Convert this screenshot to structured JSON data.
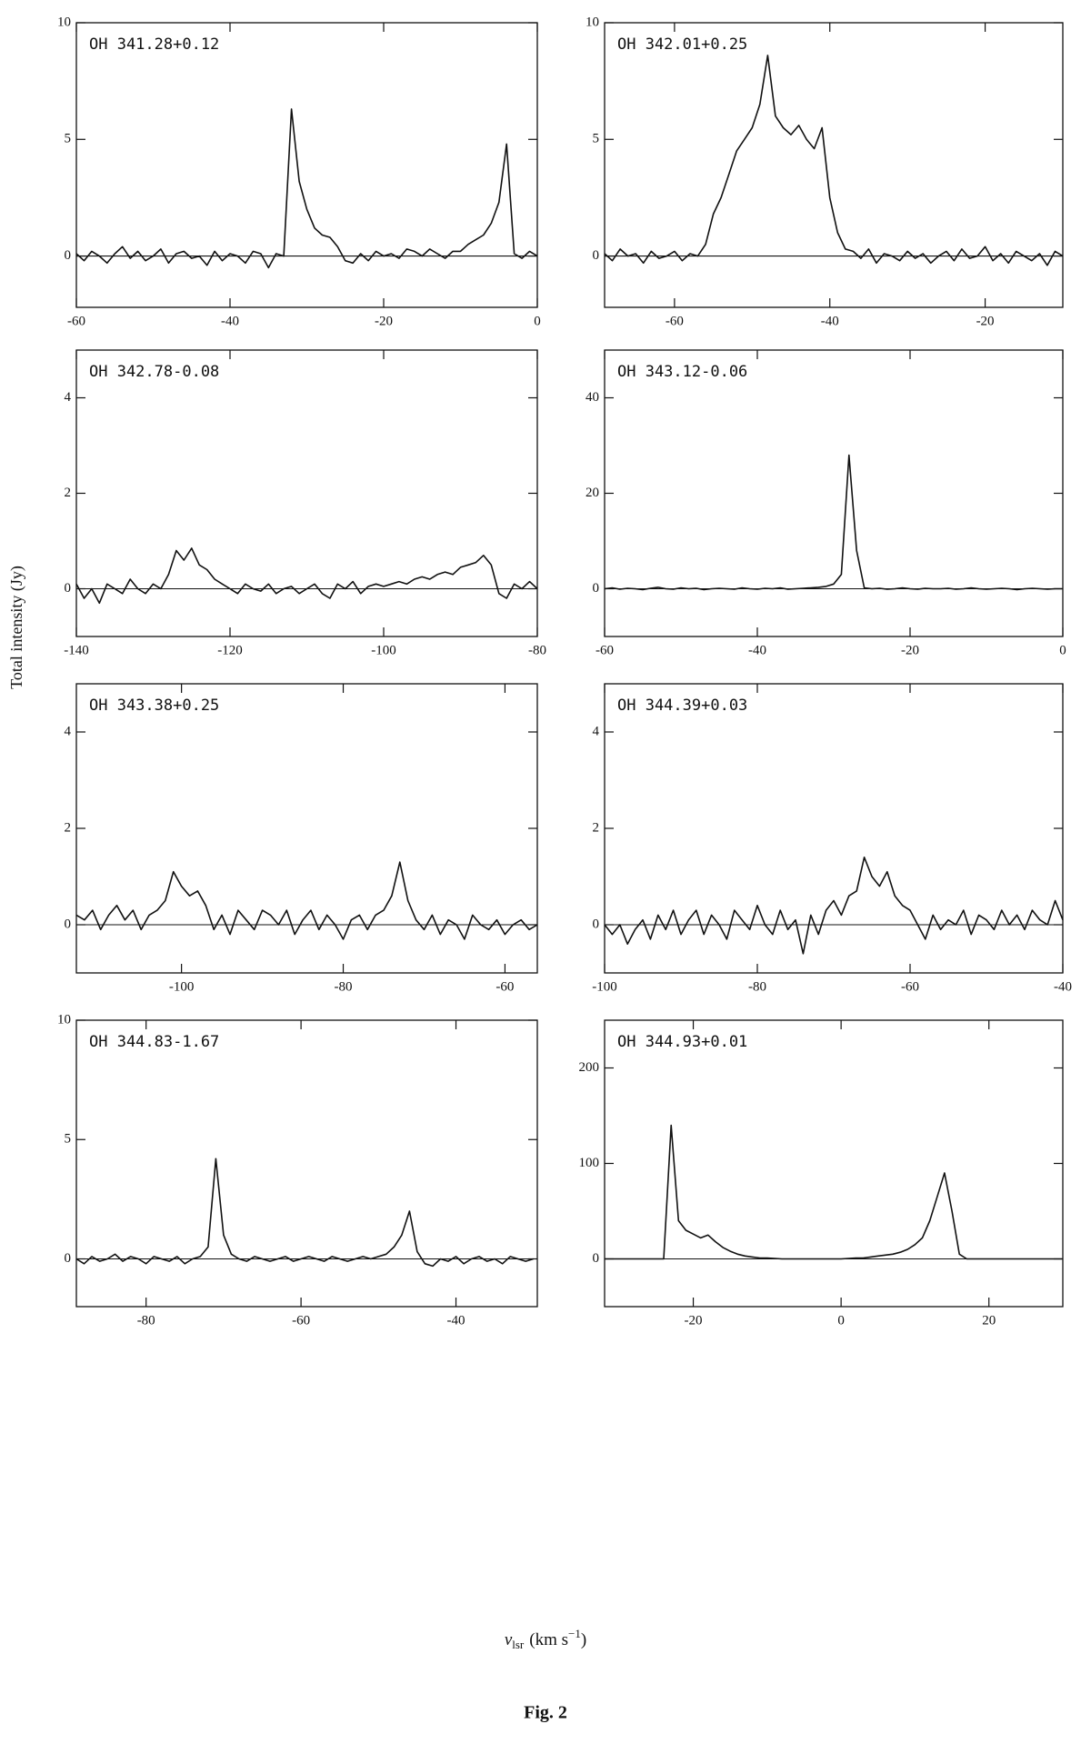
{
  "figure": {
    "ylabel": "Total intensity (Jy)",
    "xlabel": {
      "symbol": "v",
      "subscript": "lsr",
      "unit": "(km s",
      "exponent": "−1",
      "close": ")"
    },
    "caption": "Fig. 2"
  },
  "chart_data": [
    {
      "type": "line",
      "title": "OH 341.28+0.12",
      "xlim": [
        -60,
        0
      ],
      "ylim": [
        -2.2,
        10
      ],
      "xticks": [
        -60,
        -40,
        -20,
        0
      ],
      "yticks": [
        0,
        5,
        10
      ],
      "color": "#111111",
      "x": [
        -60,
        -59,
        -58,
        -57,
        -56,
        -55,
        -54,
        -53,
        -52,
        -51,
        -50,
        -49,
        -48,
        -47,
        -46,
        -45,
        -44,
        -43,
        -42,
        -41,
        -40,
        -39,
        -38,
        -37,
        -36,
        -35,
        -34,
        -33,
        -32,
        -31,
        -30,
        -29,
        -28,
        -27,
        -26,
        -25,
        -24,
        -23,
        -22,
        -21,
        -20,
        -19,
        -18,
        -17,
        -16,
        -15,
        -14,
        -13,
        -12,
        -11,
        -10,
        -9,
        -8,
        -7,
        -6,
        -5,
        -4,
        -3,
        -2,
        -1,
        0
      ],
      "values": [
        0.1,
        -0.2,
        0.2,
        0,
        -0.3,
        0.1,
        0.4,
        -0.1,
        0.2,
        -0.2,
        0,
        0.3,
        -0.3,
        0.1,
        0.2,
        -0.1,
        0,
        -0.4,
        0.2,
        -0.2,
        0.1,
        0,
        -0.3,
        0.2,
        0.1,
        -0.5,
        0.1,
        0,
        6.3,
        3.2,
        2.0,
        1.2,
        0.9,
        0.8,
        0.4,
        -0.2,
        -0.3,
        0.1,
        -0.2,
        0.2,
        0,
        0.1,
        -0.1,
        0.3,
        0.2,
        0,
        0.3,
        0.1,
        -0.1,
        0.2,
        0.2,
        0.5,
        0.7,
        0.9,
        1.4,
        2.3,
        4.8,
        0.1,
        -0.1,
        0.2,
        0
      ]
    },
    {
      "type": "line",
      "title": "OH 342.01+0.25",
      "xlim": [
        -69,
        -10
      ],
      "ylim": [
        -2.2,
        10
      ],
      "xticks": [
        -60,
        -40,
        -20
      ],
      "yticks": [
        0,
        5,
        10
      ],
      "color": "#111111",
      "x": [
        -69,
        -68,
        -67,
        -66,
        -65,
        -64,
        -63,
        -62,
        -61,
        -60,
        -59,
        -58,
        -57,
        -56,
        -55,
        -54,
        -53,
        -52,
        -51,
        -50,
        -49,
        -48,
        -47,
        -46,
        -45,
        -44,
        -43,
        -42,
        -41,
        -40,
        -39,
        -38,
        -37,
        -36,
        -35,
        -34,
        -33,
        -32,
        -31,
        -30,
        -29,
        -28,
        -27,
        -26,
        -25,
        -24,
        -23,
        -22,
        -21,
        -20,
        -19,
        -18,
        -17,
        -16,
        -15,
        -14,
        -13,
        -12,
        -11,
        -10
      ],
      "values": [
        0.1,
        -0.2,
        0.3,
        0,
        0.1,
        -0.3,
        0.2,
        -0.1,
        0,
        0.2,
        -0.2,
        0.1,
        0,
        0.5,
        1.8,
        2.5,
        3.5,
        4.5,
        5.0,
        5.5,
        6.5,
        8.6,
        6.0,
        5.5,
        5.2,
        5.6,
        5.0,
        4.6,
        5.5,
        2.5,
        1.0,
        0.3,
        0.2,
        -0.1,
        0.3,
        -0.3,
        0.1,
        0,
        -0.2,
        0.2,
        -0.1,
        0.1,
        -0.3,
        0,
        0.2,
        -0.2,
        0.3,
        -0.1,
        0,
        0.4,
        -0.2,
        0.1,
        -0.3,
        0.2,
        0,
        -0.2,
        0.1,
        -0.4,
        0.2,
        0
      ]
    },
    {
      "type": "line",
      "title": "OH 342.78-0.08",
      "xlim": [
        -140,
        -80
      ],
      "ylim": [
        -1,
        5
      ],
      "xticks": [
        -140,
        -120,
        -100,
        -80
      ],
      "yticks": [
        0,
        2,
        4
      ],
      "color": "#111111",
      "x": [
        -140,
        -139,
        -138,
        -137,
        -136,
        -135,
        -134,
        -133,
        -132,
        -131,
        -130,
        -129,
        -128,
        -127,
        -126,
        -125,
        -124,
        -123,
        -122,
        -121,
        -120,
        -119,
        -118,
        -117,
        -116,
        -115,
        -114,
        -113,
        -112,
        -111,
        -110,
        -109,
        -108,
        -107,
        -106,
        -105,
        -104,
        -103,
        -102,
        -101,
        -100,
        -99,
        -98,
        -97,
        -96,
        -95,
        -94,
        -93,
        -92,
        -91,
        -90,
        -89,
        -88,
        -87,
        -86,
        -85,
        -84,
        -83,
        -82,
        -81,
        -80
      ],
      "values": [
        0.1,
        -0.2,
        0,
        -0.3,
        0.1,
        0,
        -0.1,
        0.2,
        0,
        -0.1,
        0.1,
        0,
        0.3,
        0.8,
        0.6,
        0.85,
        0.5,
        0.4,
        0.2,
        0.1,
        0,
        -0.1,
        0.1,
        0,
        -0.05,
        0.1,
        -0.1,
        0,
        0.05,
        -0.1,
        0,
        0.1,
        -0.1,
        -0.2,
        0.1,
        0,
        0.15,
        -0.1,
        0.05,
        0.1,
        0.05,
        0.1,
        0.15,
        0.1,
        0.2,
        0.25,
        0.2,
        0.3,
        0.35,
        0.3,
        0.45,
        0.5,
        0.55,
        0.7,
        0.5,
        -0.1,
        -0.2,
        0.1,
        0,
        0.15,
        0
      ]
    },
    {
      "type": "line",
      "title": "OH 343.12-0.06",
      "xlim": [
        -60,
        0
      ],
      "ylim": [
        -10,
        50
      ],
      "xticks": [
        -60,
        -40,
        -20,
        0
      ],
      "yticks": [
        0,
        20,
        40
      ],
      "color": "#111111",
      "x": [
        -60,
        -59,
        -58,
        -57,
        -56,
        -55,
        -54,
        -53,
        -52,
        -51,
        -50,
        -49,
        -48,
        -47,
        -46,
        -45,
        -44,
        -43,
        -42,
        -41,
        -40,
        -39,
        -38,
        -37,
        -36,
        -35,
        -34,
        -33,
        -32,
        -31,
        -30,
        -29,
        -28,
        -27,
        -26,
        -25,
        -24,
        -23,
        -22,
        -21,
        -20,
        -19,
        -18,
        -17,
        -16,
        -15,
        -14,
        -13,
        -12,
        -11,
        -10,
        -9,
        -8,
        -7,
        -6,
        -5,
        -4,
        -3,
        -2,
        -1,
        0
      ],
      "values": [
        0,
        0.2,
        -0.1,
        0.1,
        0,
        -0.2,
        0.1,
        0.3,
        0,
        -0.1,
        0.2,
        0,
        0.1,
        -0.2,
        0,
        0.1,
        0,
        -0.1,
        0.2,
        0,
        -0.1,
        0.1,
        0,
        0.2,
        -0.1,
        0,
        0.1,
        0.2,
        0.3,
        0.5,
        1.0,
        3.0,
        28,
        8,
        0.2,
        0,
        0.1,
        -0.1,
        0,
        0.2,
        0,
        -0.1,
        0.1,
        0,
        0,
        0.1,
        -0.1,
        0,
        0.2,
        0,
        -0.1,
        0,
        0.1,
        0,
        -0.2,
        0,
        0.1,
        0,
        -0.1,
        0,
        0
      ]
    },
    {
      "type": "line",
      "title": "OH 343.38+0.25",
      "xlim": [
        -113,
        -56
      ],
      "ylim": [
        -1,
        5
      ],
      "xticks": [
        -100,
        -80,
        -60
      ],
      "yticks": [
        0,
        2,
        4
      ],
      "color": "#111111",
      "x": [
        -113,
        -112,
        -111,
        -110,
        -109,
        -108,
        -107,
        -106,
        -105,
        -104,
        -103,
        -102,
        -101,
        -100,
        -99,
        -98,
        -97,
        -96,
        -95,
        -94,
        -93,
        -92,
        -91,
        -90,
        -89,
        -88,
        -87,
        -86,
        -85,
        -84,
        -83,
        -82,
        -81,
        -80,
        -79,
        -78,
        -77,
        -76,
        -75,
        -74,
        -73,
        -72,
        -71,
        -70,
        -69,
        -68,
        -67,
        -66,
        -65,
        -64,
        -63,
        -62,
        -61,
        -60,
        -59,
        -58,
        -57,
        -56
      ],
      "values": [
        0.2,
        0.1,
        0.3,
        -0.1,
        0.2,
        0.4,
        0.1,
        0.3,
        -0.1,
        0.2,
        0.3,
        0.5,
        1.1,
        0.8,
        0.6,
        0.7,
        0.4,
        -0.1,
        0.2,
        -0.2,
        0.3,
        0.1,
        -0.1,
        0.3,
        0.2,
        0,
        0.3,
        -0.2,
        0.1,
        0.3,
        -0.1,
        0.2,
        0,
        -0.3,
        0.1,
        0.2,
        -0.1,
        0.2,
        0.3,
        0.6,
        1.3,
        0.5,
        0.1,
        -0.1,
        0.2,
        -0.2,
        0.1,
        0,
        -0.3,
        0.2,
        0,
        -0.1,
        0.1,
        -0.2,
        0,
        0.1,
        -0.1,
        0
      ]
    },
    {
      "type": "line",
      "title": "OH 344.39+0.03",
      "xlim": [
        -100,
        -40
      ],
      "ylim": [
        -1,
        5
      ],
      "xticks": [
        -100,
        -80,
        -60,
        -40
      ],
      "yticks": [
        0,
        2,
        4
      ],
      "color": "#111111",
      "x": [
        -100,
        -99,
        -98,
        -97,
        -96,
        -95,
        -94,
        -93,
        -92,
        -91,
        -90,
        -89,
        -88,
        -87,
        -86,
        -85,
        -84,
        -83,
        -82,
        -81,
        -80,
        -79,
        -78,
        -77,
        -76,
        -75,
        -74,
        -73,
        -72,
        -71,
        -70,
        -69,
        -68,
        -67,
        -66,
        -65,
        -64,
        -63,
        -62,
        -61,
        -60,
        -59,
        -58,
        -57,
        -56,
        -55,
        -54,
        -53,
        -52,
        -51,
        -50,
        -49,
        -48,
        -47,
        -46,
        -45,
        -44,
        -43,
        -42,
        -41,
        -40
      ],
      "values": [
        0,
        -0.2,
        0,
        -0.4,
        -0.1,
        0.1,
        -0.3,
        0.2,
        -0.1,
        0.3,
        -0.2,
        0.1,
        0.3,
        -0.2,
        0.2,
        0,
        -0.3,
        0.3,
        0.1,
        -0.1,
        0.4,
        0,
        -0.2,
        0.3,
        -0.1,
        0.1,
        -0.6,
        0.2,
        -0.2,
        0.3,
        0.5,
        0.2,
        0.6,
        0.7,
        1.4,
        1.0,
        0.8,
        1.1,
        0.6,
        0.4,
        0.3,
        0,
        -0.3,
        0.2,
        -0.1,
        0.1,
        0,
        0.3,
        -0.2,
        0.2,
        0.1,
        -0.1,
        0.3,
        0,
        0.2,
        -0.1,
        0.3,
        0.1,
        0,
        0.5,
        0.1
      ]
    },
    {
      "type": "line",
      "title": "OH 344.83-1.67",
      "xlim": [
        -89,
        -29.5
      ],
      "ylim": [
        -2,
        10
      ],
      "xticks": [
        -80,
        -60,
        -40
      ],
      "yticks": [
        0,
        5,
        10
      ],
      "color": "#111111",
      "x": [
        -89,
        -88,
        -87,
        -86,
        -85,
        -84,
        -83,
        -82,
        -81,
        -80,
        -79,
        -78,
        -77,
        -76,
        -75,
        -74,
        -73,
        -72,
        -71,
        -70,
        -69,
        -68,
        -67,
        -66,
        -65,
        -64,
        -63,
        -62,
        -61,
        -60,
        -59,
        -58,
        -57,
        -56,
        -55,
        -54,
        -53,
        -52,
        -51,
        -50,
        -49,
        -48,
        -47,
        -46,
        -45,
        -44,
        -43,
        -42,
        -41,
        -40,
        -39,
        -38,
        -37,
        -36,
        -35,
        -34,
        -33,
        -32,
        -31,
        -30
      ],
      "values": [
        0,
        -0.2,
        0.1,
        -0.1,
        0,
        0.2,
        -0.1,
        0.1,
        0,
        -0.2,
        0.1,
        0,
        -0.1,
        0.1,
        -0.2,
        0,
        0.1,
        0.5,
        4.2,
        1.0,
        0.2,
        0,
        -0.1,
        0.1,
        0,
        -0.1,
        0,
        0.1,
        -0.1,
        0,
        0.1,
        0,
        -0.1,
        0.1,
        0,
        -0.1,
        0,
        0.1,
        0,
        0.1,
        0.2,
        0.5,
        1.0,
        2.0,
        0.3,
        -0.2,
        -0.3,
        0,
        -0.1,
        0.1,
        -0.2,
        0,
        0.1,
        -0.1,
        0,
        -0.2,
        0.1,
        0,
        -0.1,
        0
      ]
    },
    {
      "type": "line",
      "title": "OH 344.93+0.01",
      "xlim": [
        -32,
        30
      ],
      "ylim": [
        -50,
        250
      ],
      "xticks": [
        -20,
        0,
        20
      ],
      "yticks": [
        0,
        100,
        200
      ],
      "color": "#111111",
      "x": [
        -32,
        -31,
        -30,
        -29,
        -28,
        -27,
        -26,
        -25,
        -24,
        -23,
        -22,
        -21,
        -20,
        -19,
        -18,
        -17,
        -16,
        -15,
        -14,
        -13,
        -12,
        -11,
        -10,
        -9,
        -8,
        -7,
        -6,
        -5,
        -4,
        -3,
        -2,
        -1,
        0,
        1,
        2,
        3,
        4,
        5,
        6,
        7,
        8,
        9,
        10,
        11,
        12,
        13,
        14,
        15,
        16,
        17,
        18,
        19,
        20,
        21,
        22,
        23,
        24,
        25,
        26,
        27,
        28,
        29,
        30
      ],
      "values": [
        0,
        0,
        0,
        0,
        0,
        0,
        0,
        0,
        0,
        140,
        40,
        30,
        26,
        22,
        25,
        18,
        12,
        8,
        5,
        3,
        2,
        1,
        1,
        0.5,
        0,
        0,
        0,
        0,
        0,
        0,
        0,
        0,
        0,
        0.5,
        1,
        1,
        2,
        3,
        4,
        5,
        7,
        10,
        15,
        22,
        40,
        65,
        90,
        50,
        5,
        0,
        0,
        0,
        0,
        0,
        0,
        0,
        0,
        0,
        0,
        0,
        0,
        0,
        0
      ]
    }
  ]
}
